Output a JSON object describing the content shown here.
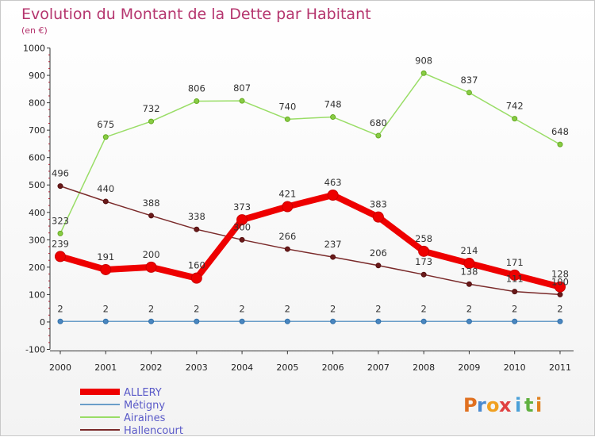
{
  "title": "Evolution du Montant de la Dette par Habitant",
  "subtitle": "(en €)",
  "logo": "Proxiti",
  "colors": {
    "title": "#b5356e",
    "ALLERY": "#ee0000",
    "Métigny": "#6a9ec8",
    "Airaines": "#99dd66",
    "Hallencourt": "#7a2a2a"
  },
  "chart_data": {
    "type": "line",
    "title": "Evolution du Montant de la Dette par Habitant",
    "subtitle": "(en €)",
    "xlabel": "",
    "ylabel": "",
    "x": [
      "2000",
      "2001",
      "2002",
      "2003",
      "2004",
      "2005",
      "2006",
      "2007",
      "2008",
      "2009",
      "2010",
      "2011"
    ],
    "ylim": [
      -100,
      1000
    ],
    "yticks": [
      "-100",
      "0",
      "100",
      "200",
      "300",
      "400",
      "500",
      "600",
      "700",
      "800",
      "900",
      "1000"
    ],
    "grid": false,
    "legend": "bottom-left",
    "series": [
      {
        "name": "ALLERY",
        "values": [
          239,
          191,
          200,
          160,
          373,
          421,
          463,
          383,
          258,
          214,
          171,
          128
        ],
        "labels": [
          "239",
          "191",
          "200",
          "160",
          "373",
          "421",
          "463",
          "383",
          "258",
          "214",
          "171",
          "128"
        ]
      },
      {
        "name": "Métigny",
        "values": [
          2,
          2,
          2,
          2,
          2,
          2,
          2,
          2,
          2,
          2,
          2,
          2
        ],
        "labels": [
          "2",
          "2",
          "2",
          "2",
          "2",
          "2",
          "2",
          "2",
          "2",
          "2",
          "2",
          "2"
        ]
      },
      {
        "name": "Airaines",
        "values": [
          323,
          675,
          732,
          806,
          807,
          740,
          748,
          680,
          908,
          837,
          742,
          648
        ],
        "labels": [
          "323",
          "675",
          "732",
          "806",
          "807",
          "740",
          "748",
          "680",
          "908",
          "837",
          "742",
          "648"
        ]
      },
      {
        "name": "Hallencourt",
        "values": [
          496,
          440,
          388,
          338,
          300,
          266,
          237,
          206,
          173,
          138,
          111,
          100
        ],
        "labels": [
          "496",
          "440",
          "388",
          "338",
          "300",
          "266",
          "237",
          "206",
          "173",
          "138",
          "111",
          "100"
        ]
      }
    ]
  }
}
